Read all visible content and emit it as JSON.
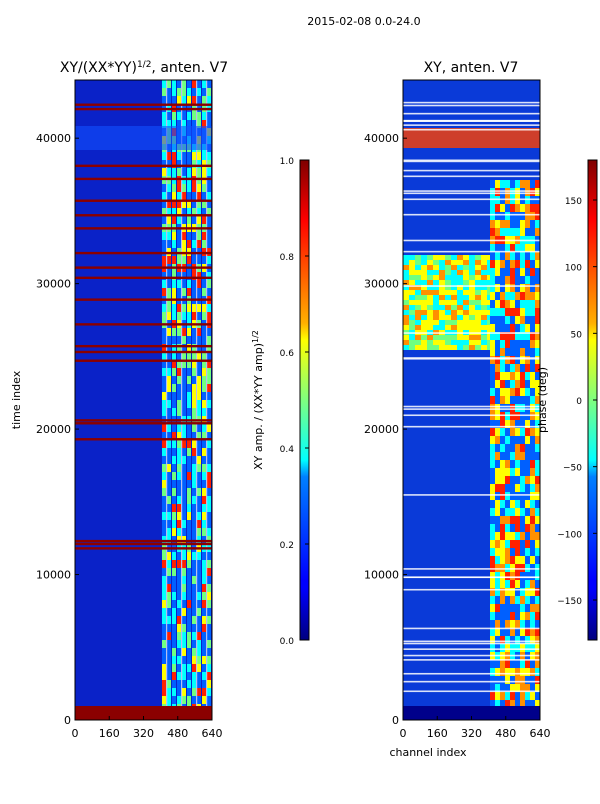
{
  "suptitle": "2015-02-08 0.0-24.0",
  "chart_data": [
    {
      "type": "heatmap",
      "title_base": "XY/(XX*YY)",
      "title_exp": "1/2",
      "title_suffix": ", anten. V7",
      "xlabel": "",
      "ylabel": "time index",
      "xlim": [
        0,
        640
      ],
      "ylim": [
        0,
        44000
      ],
      "xticks": [
        "0",
        "160",
        "320",
        "480",
        "640"
      ],
      "yticks": [
        "0",
        "10000",
        "20000",
        "30000",
        "40000"
      ],
      "colorbar": {
        "label_base": "XY amp. / (XX*YY amp)",
        "label_exp": "1/2",
        "range": [
          0.0,
          1.0
        ],
        "ticks": [
          "0.0",
          "0.2",
          "0.4",
          "0.6",
          "0.8",
          "1.0"
        ]
      },
      "saturated_rows": [
        500,
        11800,
        12100,
        12300,
        19300,
        20400,
        20600,
        24700,
        25300,
        25700,
        27200,
        28900,
        30400,
        31100,
        32100,
        33800,
        34700,
        35700,
        37200,
        38100,
        42000,
        42300
      ]
    },
    {
      "type": "heatmap",
      "title": "XY, anten. V7",
      "xlabel": "channel index",
      "ylabel": "",
      "xlim": [
        0,
        640
      ],
      "ylim": [
        0,
        44000
      ],
      "xticks": [
        "0",
        "160",
        "320",
        "480",
        "640"
      ],
      "yticks": [
        "0",
        "10000",
        "20000",
        "30000",
        "40000"
      ],
      "colorbar": {
        "label": "phase (deg)",
        "range": [
          -180,
          180
        ],
        "ticks": [
          "−150",
          "−100",
          "−50",
          "0",
          "50",
          "100",
          "150"
        ]
      }
    }
  ]
}
